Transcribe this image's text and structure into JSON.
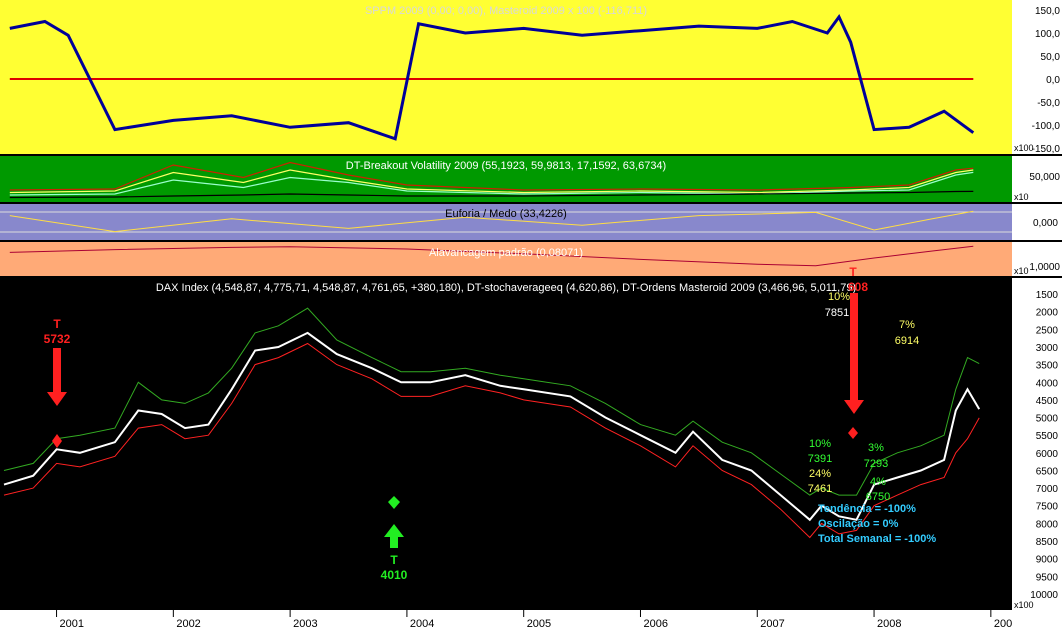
{
  "colors": {
    "panel1_bg": "#ffff33",
    "panel2_bg": "#009900",
    "panel3_bg": "#8888cc",
    "panel4_bg": "#ffaa77",
    "main_bg": "#000000",
    "axis_bg": "#ffffff",
    "signal_sell": "#ff2020",
    "signal_buy": "#22ee22",
    "pct_yellow": "#ffff66",
    "pct_green": "#33ff33",
    "summary_cyan": "#33ccff"
  },
  "panels": {
    "p1": {
      "title": "SPPM 2009 (0,00; 0,00), Masteroid 2009 x 100 (-116,711)",
      "ticks": [
        "150,0",
        "100,0",
        "50,0",
        "0,0",
        "-50,0",
        "-100,0",
        "-150,0"
      ],
      "scale": "x100"
    },
    "p2": {
      "title": "DT-Breakout Volatility 2009 (55,1923, 59,9813, 17,1592, 63,6734)",
      "ticks": [
        "50,000"
      ],
      "scale": "x10"
    },
    "p3": {
      "title": "Euforia / Medo (33,4226)",
      "ticks": [
        "0,000"
      ]
    },
    "p4": {
      "title": "Alavancagem padrão (0,08071)",
      "ticks": [
        "1,0000"
      ],
      "scale": "x10"
    },
    "main": {
      "title": "DAX Index (4,548,87, 4,775,71, 4,548,87, 4,761,65, +380,180), DT-stochaverageeq (4,620,86), DT-Ordens Masteroid 2009 (3,466,96, 5,011,79)",
      "ticks": [
        "10000",
        "9500",
        "9000",
        "8500",
        "8000",
        "7500",
        "7000",
        "6500",
        "6000",
        "5500",
        "5000",
        "4500",
        "4000",
        "3500",
        "3000",
        "2500",
        "2000",
        "1500"
      ],
      "scale": "x100"
    }
  },
  "x_axis": {
    "labels": [
      "2001",
      "2002",
      "2003",
      "2004",
      "2005",
      "2006",
      "2007",
      "2008",
      "200"
    ]
  },
  "annotations": {
    "sell1_letter": "T",
    "sell1_value": "5732",
    "buy1_letter": "T",
    "buy1_value": "4010",
    "sell2_letter": "T",
    "sell2_value": "608",
    "top_pct": "10%",
    "top_value": "7851",
    "a_pct": "10%",
    "a_value": "7391",
    "b_pct": "24%",
    "b_value": "7461",
    "c_pct": "3%",
    "c_value": "7293",
    "d_pct": "4%",
    "d_value": "6750",
    "e_pct": "7%",
    "e_value": "6914"
  },
  "summary": {
    "trend": "Tendência = -100%",
    "oscillation": "Oscilação = 0%",
    "weekly": "Total Semanal = -100%"
  },
  "chart_data": [
    {
      "type": "line",
      "title": "SPPM 2009 (0,00; 0,00), Masteroid 2009 x 100 (-116,711)",
      "ylim": [
        -150,
        150
      ],
      "x": [
        2000.6,
        2000.9,
        2001.1,
        2001.5,
        2002.0,
        2002.5,
        2003.0,
        2003.5,
        2003.9,
        2004.1,
        2004.5,
        2005.0,
        2005.5,
        2006.0,
        2006.5,
        2007.0,
        2007.3,
        2007.6,
        2007.7,
        2007.8,
        2008.0,
        2008.3,
        2008.6,
        2008.85
      ],
      "series": [
        {
          "name": "Masteroid 2009 x 100",
          "values": [
            110,
            125,
            95,
            -110,
            -90,
            -80,
            -105,
            -95,
            -130,
            120,
            100,
            110,
            95,
            105,
            115,
            110,
            125,
            100,
            135,
            80,
            -110,
            -105,
            -70,
            -116.7
          ]
        },
        {
          "name": "SPPM 2009",
          "values": [
            0,
            0,
            0,
            0,
            0,
            0,
            0,
            0,
            0,
            0,
            0,
            0,
            0,
            0,
            0,
            0,
            0,
            0,
            0,
            0,
            0,
            0,
            0,
            0
          ]
        }
      ]
    },
    {
      "type": "line",
      "title": "DT-Breakout Volatility 2009 (55,1923, 59,9813, 17,1592, 63,6734)",
      "x": [
        2000.6,
        2001.5,
        2002.0,
        2002.6,
        2003.0,
        2003.5,
        2004.0,
        2005.0,
        2006.0,
        2007.0,
        2007.8,
        2008.3,
        2008.7,
        2008.85
      ],
      "series": [
        {
          "name": "line 1",
          "values": [
            20,
            22,
            70,
            45,
            75,
            50,
            30,
            20,
            22,
            20,
            25,
            30,
            60,
            63.7
          ]
        },
        {
          "name": "line 2",
          "values": [
            15,
            18,
            55,
            35,
            60,
            40,
            22,
            15,
            18,
            15,
            20,
            25,
            55,
            60.0
          ]
        },
        {
          "name": "line 3",
          "values": [
            10,
            12,
            40,
            25,
            45,
            35,
            18,
            12,
            15,
            12,
            18,
            20,
            50,
            55.2
          ]
        },
        {
          "name": "line 4",
          "values": [
            5,
            6,
            8,
            10,
            12,
            10,
            8,
            8,
            10,
            12,
            14,
            15,
            17,
            17.2
          ]
        }
      ]
    },
    {
      "type": "line",
      "title": "Euforia / Medo (33,4226)",
      "x": [
        2000.6,
        2001.5,
        2002.5,
        2003.5,
        2004.5,
        2005.5,
        2006.5,
        2007.5,
        2008.0,
        2008.5,
        2008.85
      ],
      "series": [
        {
          "name": "Euforia / Medo",
          "values": [
            20,
            -30,
            10,
            -20,
            15,
            -10,
            20,
            30,
            -25,
            10,
            33.4
          ]
        }
      ]
    },
    {
      "type": "line",
      "title": "Alavancagem padrão (0,08071)",
      "x": [
        2000.6,
        2001.5,
        2002.5,
        2003.0,
        2004.0,
        2005.0,
        2006.0,
        2007.0,
        2007.5,
        2008.0,
        2008.5,
        2008.85
      ],
      "series": [
        {
          "name": "Alavancagem padrão",
          "values": [
            0.3,
            0.2,
            0.12,
            0.1,
            0.18,
            0.35,
            0.55,
            0.72,
            0.78,
            0.5,
            0.25,
            0.0807
          ]
        }
      ]
    },
    {
      "type": "line",
      "title": "DAX Index (4,548,87, 4,775,71, 4,548,87, 4,761,65, +380,180), DT-stochaverageeq (4,620,86), DT-Ordens Masteroid 2009 (3,466,96, 5,011,79)",
      "ylim": [
        1100,
        10400
      ],
      "x": [
        2000.55,
        2000.8,
        2001.0,
        2001.2,
        2001.5,
        2001.7,
        2001.9,
        2002.1,
        2002.3,
        2002.5,
        2002.7,
        2002.9,
        2003.15,
        2003.4,
        2003.7,
        2003.95,
        2004.2,
        2004.5,
        2004.8,
        2005.0,
        2005.4,
        2005.7,
        2006.0,
        2006.3,
        2006.45,
        2006.7,
        2006.95,
        2007.2,
        2007.45,
        2007.55,
        2007.7,
        2007.85,
        2008.0,
        2008.2,
        2008.4,
        2008.6,
        2008.7,
        2008.8,
        2008.9
      ],
      "series": [
        {
          "name": "DAX Index",
          "values": [
            6900,
            6650,
            5900,
            6000,
            5700,
            4800,
            4900,
            5300,
            5200,
            4200,
            3100,
            3000,
            2600,
            3200,
            3600,
            4000,
            4000,
            3800,
            4100,
            4200,
            4400,
            5000,
            5500,
            6000,
            5400,
            6200,
            6500,
            7200,
            7900,
            7500,
            7800,
            7900,
            6900,
            6700,
            6500,
            6200,
            4800,
            4200,
            4760
          ]
        },
        {
          "name": "DT-Ordens Masteroid 2009 (upper)",
          "values": [
            7200,
            7000,
            6300,
            6400,
            6100,
            5300,
            5200,
            5600,
            5500,
            4600,
            3500,
            3300,
            2900,
            3500,
            3900,
            4400,
            4400,
            4100,
            4300,
            4500,
            4700,
            5300,
            5800,
            6400,
            5800,
            6500,
            6900,
            7600,
            8400,
            8000,
            8300,
            8200,
            7500,
            7200,
            6900,
            6700,
            6000,
            5600,
            5010
          ]
        },
        {
          "name": "DT-Ordens Masteroid 2009 (lower)",
          "values": [
            6500,
            6300,
            5600,
            5500,
            5300,
            4000,
            4500,
            4600,
            4300,
            3600,
            2600,
            2400,
            1900,
            2800,
            3300,
            3700,
            3700,
            3600,
            3800,
            3900,
            4100,
            4600,
            5200,
            5500,
            5100,
            5700,
            6000,
            6600,
            7200,
            7000,
            7200,
            7200,
            6300,
            6000,
            5800,
            5500,
            4200,
            3300,
            3470
          ]
        }
      ]
    }
  ]
}
